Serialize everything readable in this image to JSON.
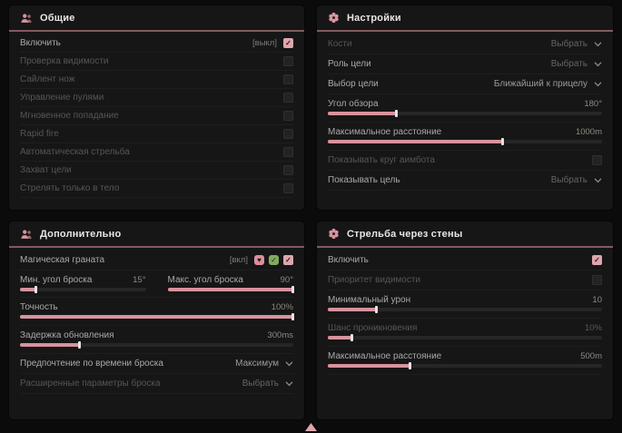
{
  "theme": {
    "bg": "#0b0b0b",
    "panel": "#161616",
    "accent": "#d7939e",
    "accentSoft": "#dfa6ae",
    "headline": "#84595f",
    "label": "#a9a9a9",
    "labelDim": "#565656",
    "value": "#8f8881",
    "valueDim": "#5d5955",
    "green": "#83aa5d"
  },
  "panels": {
    "general": {
      "title": "Общие",
      "icon": "users-icon",
      "rows": [
        {
          "type": "checkbox",
          "label": "Включить",
          "hint": "[выкл]",
          "checked": true
        },
        {
          "type": "checkbox",
          "label": "Проверка видимости",
          "dim": true,
          "checked": false
        },
        {
          "type": "checkbox",
          "label": "Сайлент нож",
          "dim": true,
          "checked": false
        },
        {
          "type": "checkbox",
          "label": "Управление пулями",
          "dim": true,
          "checked": false
        },
        {
          "type": "checkbox",
          "label": "Мгновенное попадание",
          "dim": true,
          "checked": false
        },
        {
          "type": "checkbox",
          "label": "Rapid fire",
          "dim": true,
          "checked": false
        },
        {
          "type": "checkbox",
          "label": "Автоматическая стрельба",
          "dim": true,
          "checked": false
        },
        {
          "type": "checkbox",
          "label": "Захват цели",
          "dim": true,
          "checked": false
        },
        {
          "type": "checkbox",
          "label": "Стрелять только в тело",
          "dim": true,
          "checked": false
        }
      ]
    },
    "settings": {
      "title": "Настройки",
      "icon": "gear-icon",
      "rows": [
        {
          "type": "dropdown",
          "label": "Кости",
          "dim": true,
          "value": "Выбрать",
          "value_dim": true
        },
        {
          "type": "dropdown",
          "label": "Роль цели",
          "value": "Выбрать",
          "value_dim": true
        },
        {
          "type": "dropdown",
          "label": "Выбор цели",
          "value": "Ближайший к прицелу"
        },
        {
          "type": "slider",
          "label": "Угол обзора",
          "value": "180°",
          "percent": 25
        },
        {
          "type": "slider",
          "label": "Максимальное расстояние",
          "value": "1000m",
          "percent": 64
        },
        {
          "type": "checkbox",
          "label": "Показывать круг аимбота",
          "dim": true,
          "checked": false
        },
        {
          "type": "dropdown",
          "label": "Показывать цель",
          "value": "Выбрать",
          "value_dim": true
        }
      ]
    },
    "additional": {
      "title": "Дополнительно",
      "icon": "users-icon",
      "rows": [
        {
          "type": "checkbox",
          "label": "Магическая граната",
          "hint": "[вкл]",
          "checked": true,
          "icons": [
            {
              "name": "broken-heart-icon",
              "glyph": "♥",
              "color": "#dd8f9b"
            },
            {
              "name": "check-leaf-icon",
              "glyph": "✓",
              "color": "#83aa5d"
            }
          ]
        },
        {
          "type": "slider-pair",
          "left": {
            "label": "Мин. угол броска",
            "value": "15°",
            "percent": 13
          },
          "right": {
            "label": "Макс. угол броска",
            "value": "90°",
            "percent": 100
          }
        },
        {
          "type": "slider",
          "label": "Точность",
          "value": "100%",
          "percent": 100
        },
        {
          "type": "slider",
          "label": "Задержка обновления",
          "value": "300ms",
          "percent": 22
        },
        {
          "type": "dropdown",
          "label": "Предпочтение по времени броска",
          "value": "Максимум"
        },
        {
          "type": "dropdown",
          "label": "Расширенные параметры броска",
          "dim": true,
          "value": "Выбрать",
          "value_dim": true
        }
      ]
    },
    "wallbang": {
      "title": "Стрельба через стены",
      "icon": "gear-icon",
      "rows": [
        {
          "type": "checkbox",
          "label": "Включить",
          "checked": true
        },
        {
          "type": "checkbox",
          "label": "Приоритет видимости",
          "dim": true,
          "checked": false
        },
        {
          "type": "slider",
          "label": "Минимальный урон",
          "value": "10",
          "percent": 18
        },
        {
          "type": "slider",
          "label": "Шанс проникновения",
          "dim": true,
          "value": "10%",
          "value_dim": true,
          "percent": 9
        },
        {
          "type": "slider",
          "label": "Максимальное расстояние",
          "value": "500m",
          "percent": 30
        }
      ]
    }
  }
}
